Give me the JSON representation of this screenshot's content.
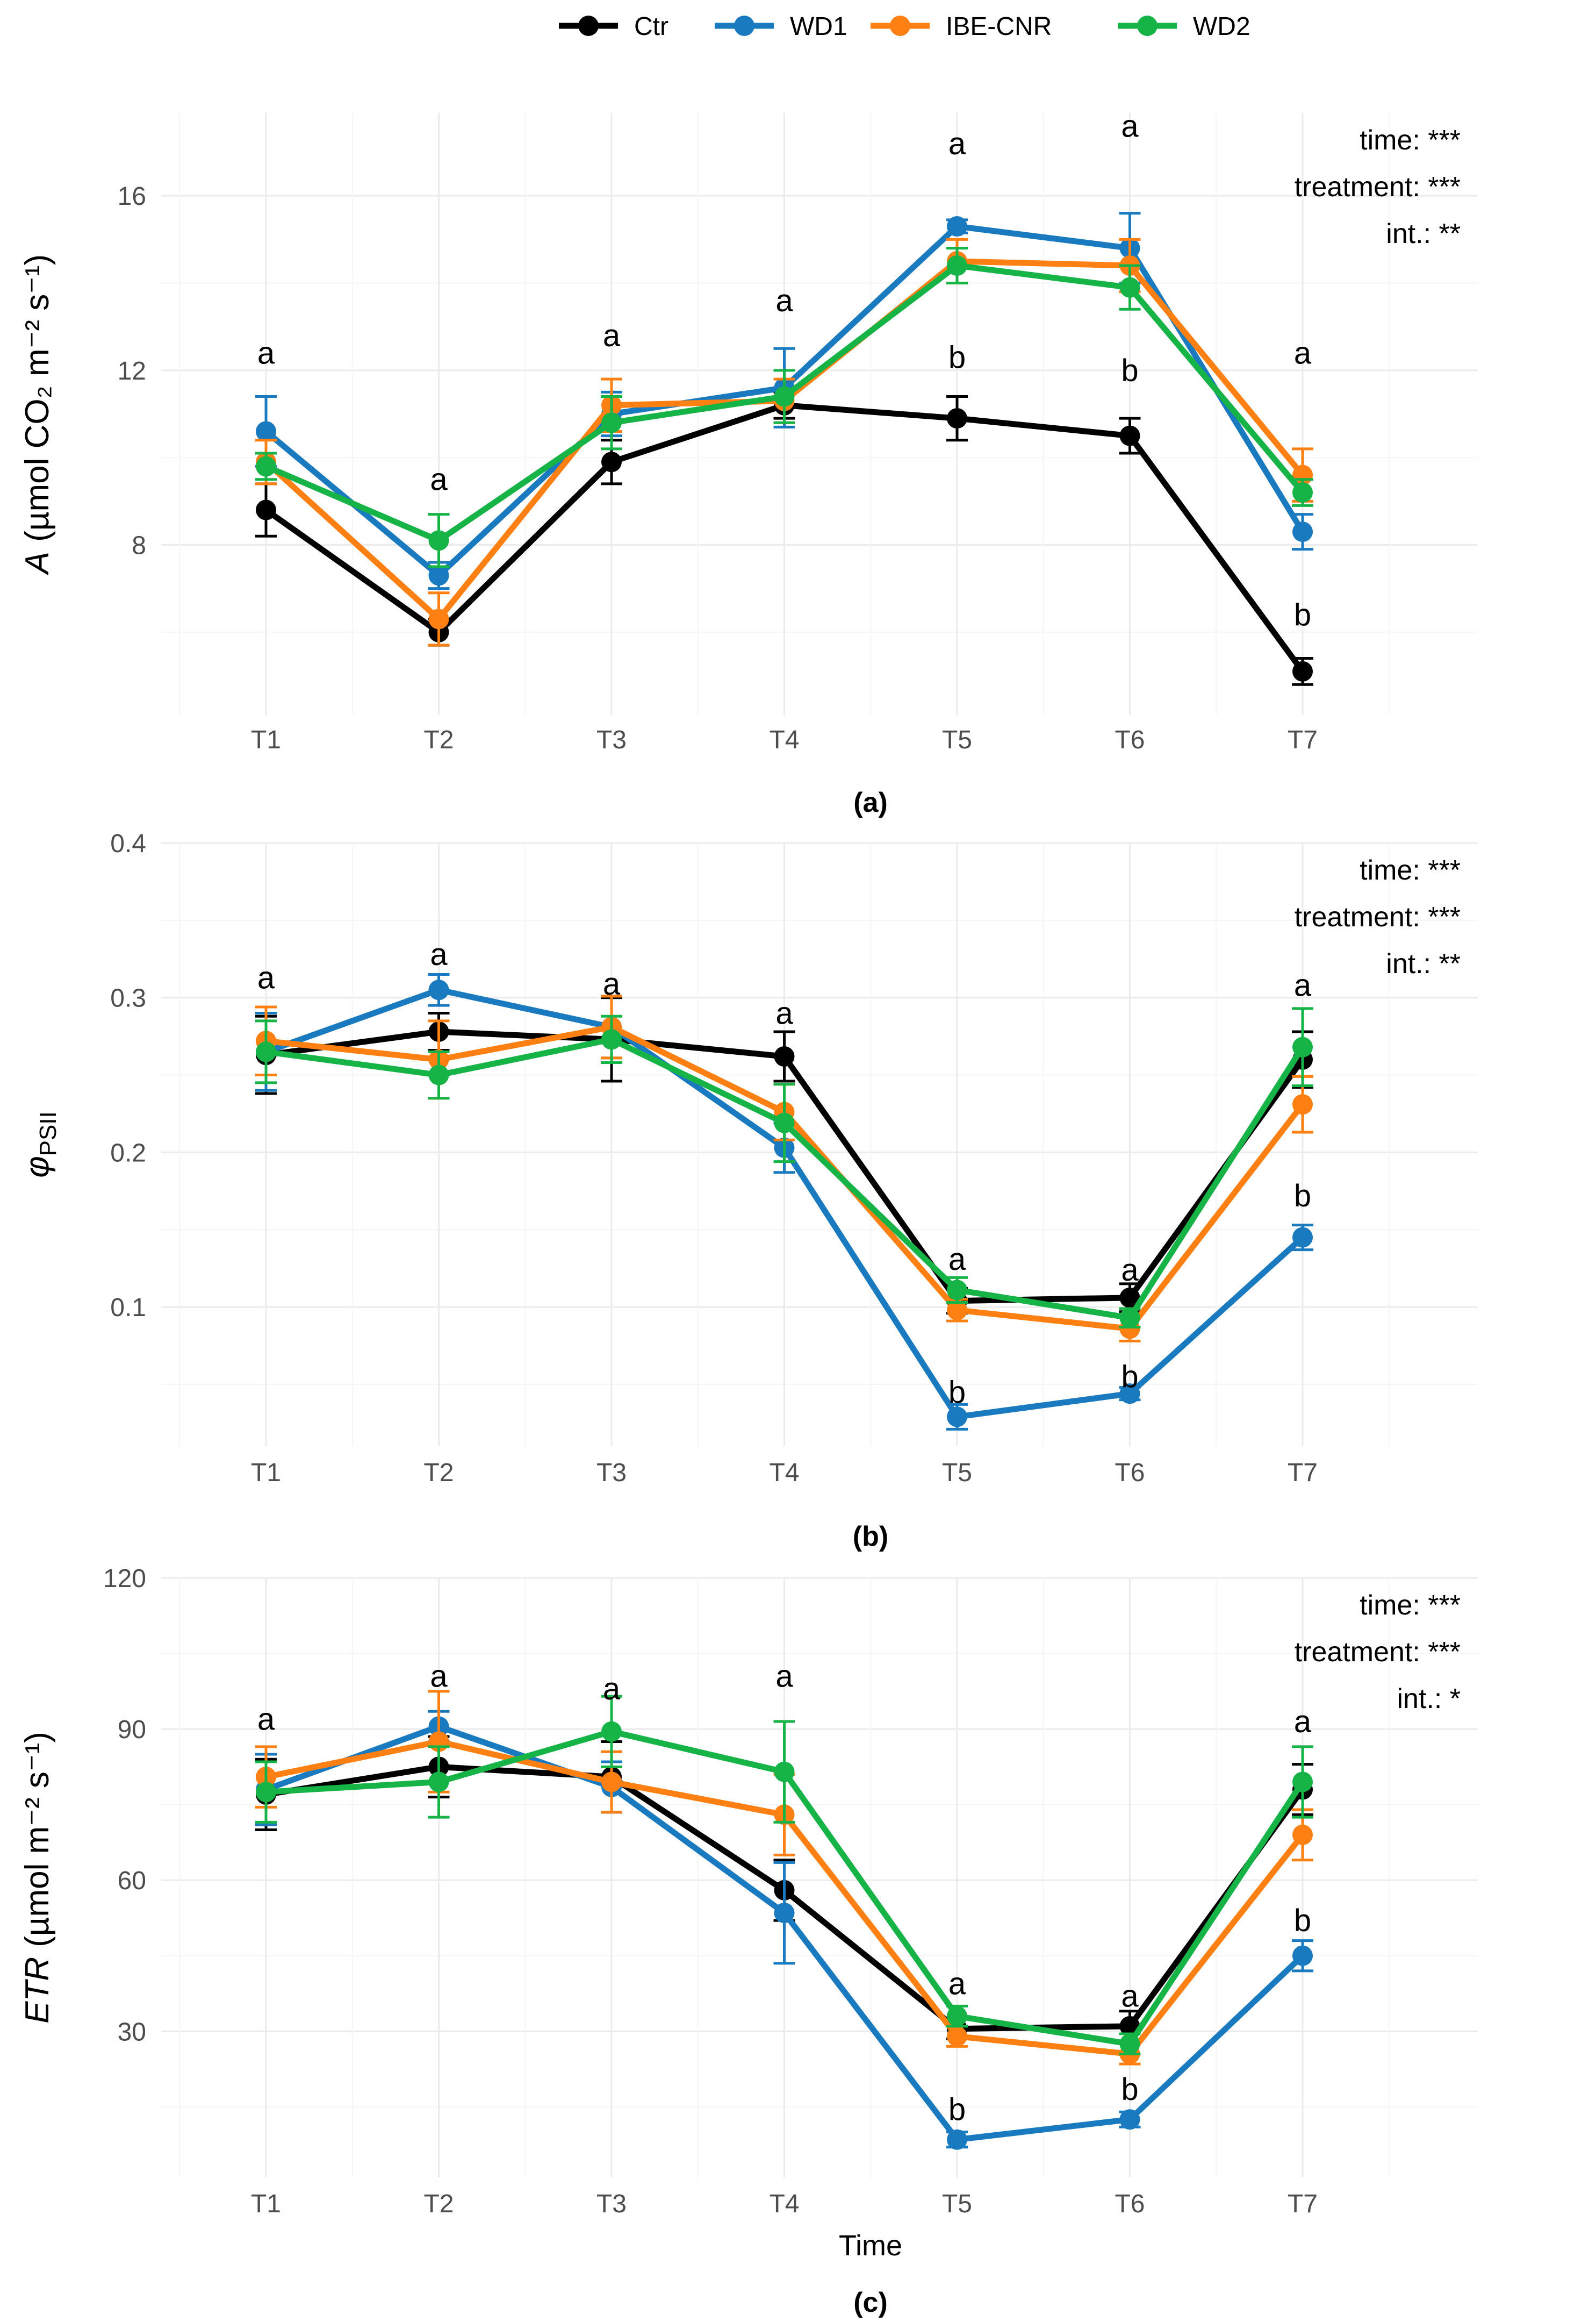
{
  "legend": {
    "items": [
      {
        "name": "Ctr",
        "color": "#000000"
      },
      {
        "name": "WD1",
        "color": "#1a7abf"
      },
      {
        "name": "IBE-CNR",
        "color": "#ff8012"
      },
      {
        "name": "WD2",
        "color": "#16b347"
      }
    ]
  },
  "chart_data": [
    {
      "type": "line",
      "panel_label": "(a)",
      "categories": [
        "T1",
        "T2",
        "T3",
        "T4",
        "T5",
        "T6",
        "T7"
      ],
      "xlabel": "",
      "ylabel": {
        "var": "A",
        "text": "(µmol CO₂ m⁻² s⁻¹)"
      },
      "ylim": [
        4.1,
        17.9
      ],
      "yticks": [
        8,
        12,
        16
      ],
      "grid": true,
      "series": [
        {
          "name": "Ctr",
          "values": [
            8.8,
            6.0,
            9.9,
            11.2,
            10.9,
            10.5,
            5.1
          ],
          "errors": [
            0.6,
            0.3,
            0.5,
            0.3,
            0.5,
            0.4,
            0.3
          ]
        },
        {
          "name": "WD1",
          "values": [
            10.6,
            7.3,
            11.0,
            11.6,
            15.3,
            14.8,
            8.3
          ],
          "errors": [
            0.8,
            0.3,
            0.5,
            0.9,
            0.15,
            0.8,
            0.4
          ]
        },
        {
          "name": "IBE-CNR",
          "values": [
            9.9,
            6.3,
            11.2,
            11.3,
            14.5,
            14.4,
            9.6
          ],
          "errors": [
            0.5,
            0.6,
            0.6,
            0.5,
            0.5,
            0.6,
            0.6
          ]
        },
        {
          "name": "WD2",
          "values": [
            9.8,
            8.1,
            10.8,
            11.4,
            14.4,
            13.9,
            9.2
          ],
          "errors": [
            0.3,
            0.6,
            0.6,
            0.6,
            0.4,
            0.5,
            0.3
          ]
        }
      ],
      "letters": [
        {
          "x": "T1",
          "y": 12.4,
          "text": "a"
        },
        {
          "x": "T2",
          "y": 9.5,
          "text": "a"
        },
        {
          "x": "T3",
          "y": 12.8,
          "text": "a"
        },
        {
          "x": "T4",
          "y": 13.6,
          "text": "a"
        },
        {
          "x": "T5",
          "y": 17.2,
          "text": "a"
        },
        {
          "x": "T5",
          "y": 12.3,
          "text": "b"
        },
        {
          "x": "T6",
          "y": 17.6,
          "text": "a"
        },
        {
          "x": "T6",
          "y": 12.0,
          "text": "b"
        },
        {
          "x": "T7",
          "y": 12.4,
          "text": "a"
        },
        {
          "x": "T7",
          "y": 6.4,
          "text": "b"
        }
      ],
      "stats": [
        "time: ***",
        "treatment: ***",
        "int.: **"
      ]
    },
    {
      "type": "line",
      "panel_label": "(b)",
      "categories": [
        "T1",
        "T2",
        "T3",
        "T4",
        "T5",
        "T6",
        "T7"
      ],
      "xlabel": "",
      "ylabel": {
        "var": "φ",
        "sub": "PSII"
      },
      "ylim": [
        0.01,
        0.4
      ],
      "yticks": [
        0.1,
        0.2,
        0.3,
        0.4
      ],
      "grid": true,
      "series": [
        {
          "name": "Ctr",
          "values": [
            0.263,
            0.278,
            0.273,
            0.262,
            0.104,
            0.106,
            0.26
          ],
          "errors": [
            0.025,
            0.012,
            0.027,
            0.016,
            0.008,
            0.009,
            0.018
          ]
        },
        {
          "name": "WD1",
          "values": [
            0.265,
            0.305,
            0.281,
            0.203,
            0.029,
            0.044,
            0.145
          ],
          "errors": [
            0.025,
            0.01,
            0.02,
            0.016,
            0.008,
            0.004,
            0.008
          ]
        },
        {
          "name": "IBE-CNR",
          "values": [
            0.272,
            0.26,
            0.281,
            0.226,
            0.098,
            0.086,
            0.231
          ],
          "errors": [
            0.022,
            0.025,
            0.02,
            0.018,
            0.007,
            0.008,
            0.018
          ]
        },
        {
          "name": "WD2",
          "values": [
            0.265,
            0.25,
            0.273,
            0.219,
            0.111,
            0.093,
            0.268
          ],
          "errors": [
            0.02,
            0.015,
            0.015,
            0.025,
            0.008,
            0.006,
            0.025
          ]
        }
      ],
      "letters": [
        {
          "x": "T1",
          "y": 0.313,
          "text": "a"
        },
        {
          "x": "T2",
          "y": 0.328,
          "text": "a"
        },
        {
          "x": "T3",
          "y": 0.309,
          "text": "a"
        },
        {
          "x": "T4",
          "y": 0.29,
          "text": "a"
        },
        {
          "x": "T5",
          "y": 0.131,
          "text": "a"
        },
        {
          "x": "T5",
          "y": 0.045,
          "text": "b"
        },
        {
          "x": "T6",
          "y": 0.124,
          "text": "a"
        },
        {
          "x": "T6",
          "y": 0.055,
          "text": "b"
        },
        {
          "x": "T7",
          "y": 0.308,
          "text": "a"
        },
        {
          "x": "T7",
          "y": 0.172,
          "text": "b"
        }
      ],
      "stats": [
        "time: ***",
        "treatment: ***",
        "int.: **"
      ]
    },
    {
      "type": "line",
      "panel_label": "(c)",
      "categories": [
        "T1",
        "T2",
        "T3",
        "T4",
        "T5",
        "T6",
        "T7"
      ],
      "xlabel": "Time",
      "ylabel": {
        "var": "ETR",
        "text": "(µmol m⁻² s⁻¹)"
      },
      "ylim": [
        1,
        120
      ],
      "yticks": [
        30,
        60,
        90,
        120
      ],
      "grid": true,
      "series": [
        {
          "name": "Ctr",
          "values": [
            77,
            82.5,
            80.5,
            58,
            30.5,
            31,
            78
          ],
          "errors": [
            7,
            6,
            7,
            6,
            2,
            3,
            5
          ]
        },
        {
          "name": "WD1",
          "values": [
            78,
            90.5,
            78.5,
            53.5,
            8.5,
            12.5,
            45
          ],
          "errors": [
            7,
            3,
            5,
            10,
            1.5,
            1.5,
            3
          ]
        },
        {
          "name": "IBE-CNR",
          "values": [
            80.5,
            87.5,
            79.5,
            73,
            29,
            25.5,
            69
          ],
          "errors": [
            6,
            10,
            6,
            8,
            2,
            2,
            5
          ]
        },
        {
          "name": "WD2",
          "values": [
            77.5,
            79.5,
            89.5,
            81.5,
            33,
            27.5,
            79.5
          ],
          "errors": [
            6,
            7,
            7,
            10,
            2,
            2,
            7
          ]
        }
      ],
      "letters": [
        {
          "x": "T1",
          "y": 92,
          "text": "a"
        },
        {
          "x": "T2",
          "y": 100.5,
          "text": "a"
        },
        {
          "x": "T3",
          "y": 98,
          "text": "a"
        },
        {
          "x": "T4",
          "y": 100.5,
          "text": "a"
        },
        {
          "x": "T5",
          "y": 39.5,
          "text": "a"
        },
        {
          "x": "T5",
          "y": 14.5,
          "text": "b"
        },
        {
          "x": "T6",
          "y": 37,
          "text": "a"
        },
        {
          "x": "T6",
          "y": 18.5,
          "text": "b"
        },
        {
          "x": "T7",
          "y": 91.5,
          "text": "a"
        },
        {
          "x": "T7",
          "y": 52,
          "text": "b"
        }
      ],
      "stats": [
        "time: ***",
        "treatment: ***",
        "int.: *"
      ]
    }
  ]
}
